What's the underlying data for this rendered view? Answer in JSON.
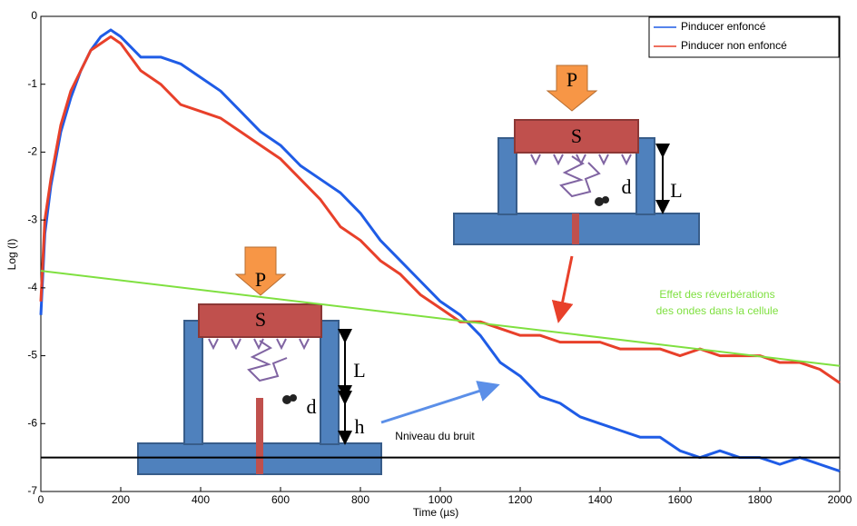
{
  "chart_data": {
    "type": "line",
    "xlabel": "Time (µs)",
    "ylabel": "Log (I)",
    "x": [
      0,
      10,
      25,
      50,
      75,
      100,
      125,
      150,
      175,
      200,
      250,
      300,
      350,
      400,
      450,
      500,
      550,
      600,
      650,
      700,
      750,
      800,
      850,
      900,
      950,
      1000,
      1050,
      1100,
      1150,
      1200,
      1250,
      1300,
      1350,
      1400,
      1450,
      1500,
      1550,
      1600,
      1650,
      1700,
      1750,
      1800,
      1850,
      1900,
      1950,
      2000
    ],
    "series": [
      {
        "name": "Pinducer enfoncé",
        "color": "#1f5ce6",
        "values": [
          -4.4,
          -3.2,
          -2.5,
          -1.7,
          -1.2,
          -0.8,
          -0.5,
          -0.3,
          -0.2,
          -0.3,
          -0.6,
          -0.6,
          -0.7,
          -0.9,
          -1.1,
          -1.4,
          -1.7,
          -1.9,
          -2.2,
          -2.4,
          -2.6,
          -2.9,
          -3.3,
          -3.6,
          -3.9,
          -4.2,
          -4.4,
          -4.7,
          -5.1,
          -5.3,
          -5.6,
          -5.7,
          -5.9,
          -6.0,
          -6.1,
          -6.2,
          -6.2,
          -6.4,
          -6.5,
          -6.4,
          -6.5,
          -6.5,
          -6.6,
          -6.5,
          -6.6,
          -6.7
        ]
      },
      {
        "name": "Pinducer non enfoncé",
        "color": "#e8402a",
        "values": [
          -4.2,
          -3.0,
          -2.4,
          -1.6,
          -1.1,
          -0.8,
          -0.5,
          -0.4,
          -0.3,
          -0.4,
          -0.8,
          -1.0,
          -1.3,
          -1.4,
          -1.5,
          -1.7,
          -1.9,
          -2.1,
          -2.4,
          -2.7,
          -3.1,
          -3.3,
          -3.6,
          -3.8,
          -4.1,
          -4.3,
          -4.5,
          -4.5,
          -4.6,
          -4.7,
          -4.7,
          -4.8,
          -4.8,
          -4.8,
          -4.9,
          -4.9,
          -4.9,
          -5.0,
          -4.9,
          -5.0,
          -5.0,
          -5.0,
          -5.1,
          -5.1,
          -5.2,
          -5.4
        ]
      }
    ],
    "reference_lines": [
      {
        "label": [
          "Nniveau du bruit"
        ],
        "color": "#000000",
        "x": [
          0,
          2000
        ],
        "y": [
          -6.5,
          -6.5
        ]
      },
      {
        "label": [
          "Effet des réverbérations",
          "des ondes dans la cellule"
        ],
        "color": "#7fe040",
        "x": [
          0,
          2000
        ],
        "y": [
          -3.75,
          -5.15
        ]
      }
    ],
    "xlim": [
      0,
      2000
    ],
    "xticks": [
      0,
      200,
      400,
      600,
      800,
      1000,
      1200,
      1400,
      1600,
      1800,
      2000
    ],
    "ylim": [
      -7,
      0
    ],
    "yticks": [
      -7,
      -6,
      -5,
      -4,
      -3,
      -2,
      -1,
      0
    ],
    "legend": "upper right"
  },
  "diagrams": [
    {
      "P": "P",
      "S": "S",
      "d": "d",
      "L": "L"
    },
    {
      "P": "P",
      "S": "S",
      "d": "d",
      "L": "L",
      "h": "h"
    }
  ]
}
